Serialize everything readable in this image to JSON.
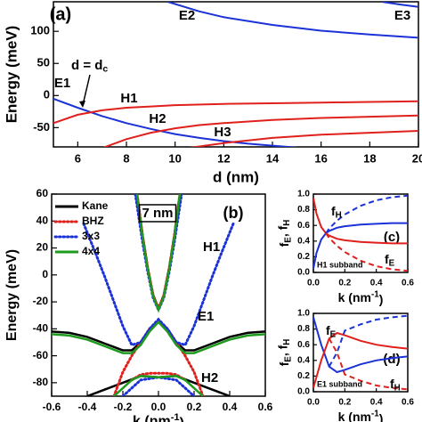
{
  "chart_data": [
    {
      "type": "line",
      "title": "(a)",
      "xlabel": "d (nm)",
      "ylabel": "Energy (meV)",
      "xlim": [
        5,
        20
      ],
      "ylim": [
        -80,
        146
      ],
      "xticks": [
        6,
        8,
        10,
        12,
        14,
        16,
        18,
        20
      ],
      "yticks": [
        -50,
        0,
        50,
        100
      ],
      "annotations": [
        {
          "parts": [
            "d = d",
            "c"
          ],
          "script": "sub",
          "color": "#000000"
        }
      ],
      "series": [
        {
          "name": "E1",
          "color": "#1a32d6",
          "style": "solid",
          "x": [
            5,
            6,
            7,
            8,
            9,
            10,
            11,
            12,
            13,
            14,
            15
          ],
          "values": [
            -5,
            -19,
            -32,
            -43,
            -52,
            -60,
            -66,
            -71,
            -75,
            -78,
            -81
          ]
        },
        {
          "name": "E2",
          "color": "#1a32d6",
          "style": "solid",
          "x": [
            9.7,
            11,
            12,
            14,
            16,
            18,
            20
          ],
          "values": [
            146,
            131,
            122,
            110,
            101,
            95,
            90
          ]
        },
        {
          "name": "E3",
          "color": "#1a32d6",
          "style": "solid",
          "x": [
            18.5,
            19.2,
            20
          ],
          "values": [
            146,
            142,
            138
          ]
        },
        {
          "name": "H1",
          "color": "#e0201c",
          "style": "solid",
          "x": [
            5,
            6,
            7,
            8,
            9,
            10,
            12,
            14,
            16,
            18,
            20
          ],
          "values": [
            -43,
            -30,
            -23,
            -19,
            -17,
            -15,
            -13,
            -12,
            -11,
            -10,
            -9
          ]
        },
        {
          "name": "H2",
          "color": "#e0201c",
          "style": "solid",
          "x": [
            7,
            8,
            9,
            10,
            11,
            12,
            14,
            16,
            18,
            20
          ],
          "values": [
            -82,
            -68,
            -58,
            -51,
            -46,
            -43,
            -38,
            -35,
            -33,
            -31
          ]
        },
        {
          "name": "H3",
          "color": "#e0201c",
          "style": "solid",
          "x": [
            10.5,
            12,
            14,
            16,
            18,
            20
          ],
          "values": [
            -82,
            -74,
            -66,
            -61,
            -58,
            -55
          ]
        }
      ]
    },
    {
      "type": "line",
      "title": "(b)",
      "xlabel": {
        "parts": [
          "k (nm",
          "-1",
          ")"
        ],
        "script": "sup"
      },
      "ylabel": "Energy (meV)",
      "xlim": [
        -0.6,
        0.6
      ],
      "ylim": [
        -90,
        60
      ],
      "xticks": [
        {
          "value": -0.6,
          "label": "-0.6"
        },
        {
          "value": -0.4,
          "label": "-0.4"
        },
        {
          "value": -0.2,
          "label": "-0.2"
        },
        {
          "value": 0,
          "label": "0.0"
        },
        0.2,
        0.4,
        0.6
      ],
      "yticks": [
        -80,
        -60,
        -40,
        -20,
        0,
        20,
        40,
        60
      ],
      "annotations": [
        "7 nm",
        "H1",
        "E1",
        "H2"
      ],
      "series": [
        {
          "name": "Kane",
          "color": "#000000",
          "style": "solid",
          "x": [
            -0.12,
            -0.09,
            -0.06,
            -0.03,
            0,
            0.03,
            0.06,
            0.09,
            0.12,
            null,
            -0.6,
            -0.5,
            -0.4,
            -0.3,
            -0.2,
            -0.15,
            -0.1,
            -0.05,
            0,
            0.05,
            0.1,
            0.15,
            0.2,
            0.3,
            0.4,
            0.5,
            0.6,
            null,
            -0.4,
            -0.3,
            -0.2,
            -0.1,
            0,
            0.1,
            0.2,
            0.3,
            0.4
          ],
          "values": [
            60,
            30,
            5,
            -15,
            -25,
            -15,
            5,
            30,
            60,
            null,
            -42,
            -43,
            -46,
            -51,
            -56,
            -56,
            -50,
            -40,
            -34,
            -40,
            -50,
            -56,
            -56,
            -51,
            -46,
            -43,
            -42,
            null,
            -90,
            -85,
            -80,
            -75,
            -76,
            -75,
            -80,
            -85,
            -90
          ]
        },
        {
          "name": "BHZ",
          "color": "#e0201c",
          "style": "dotted",
          "x": [
            -0.12,
            -0.09,
            -0.06,
            -0.03,
            0,
            0.03,
            0.06,
            0.09,
            0.12,
            null,
            -0.25,
            -0.2,
            -0.15,
            -0.1,
            -0.05,
            0,
            0.05,
            0.1,
            0.15,
            0.2,
            0.25,
            null,
            -0.15,
            -0.1,
            -0.05,
            0,
            0.05,
            0.1,
            0.15
          ],
          "values": [
            60,
            30,
            5,
            -15,
            -25,
            -15,
            5,
            30,
            60,
            null,
            -90,
            -72,
            -60,
            -50,
            -40,
            -34,
            -40,
            -50,
            -60,
            -72,
            -90,
            null,
            -78,
            -74,
            -73,
            -73,
            -73,
            -74,
            -78
          ]
        },
        {
          "name": "3x3",
          "color": "#1a32d6",
          "style": "dotted",
          "x": [
            -0.13,
            -0.09,
            -0.06,
            -0.03,
            0,
            0.03,
            0.06,
            0.09,
            0.13,
            null,
            -0.42,
            -0.35,
            -0.3,
            -0.25,
            -0.2,
            -0.15,
            -0.1,
            -0.05,
            0,
            0.05,
            0.1,
            0.15,
            0.2,
            0.25,
            0.3,
            0.35,
            0.42,
            null,
            -0.2,
            -0.1,
            0,
            0.1,
            0.2
          ],
          "values": [
            60,
            25,
            2,
            -17,
            -26,
            -17,
            2,
            25,
            60,
            null,
            38,
            15,
            -2,
            -20,
            -38,
            -52,
            -50,
            -40,
            -33,
            -40,
            -50,
            -52,
            -38,
            -20,
            -2,
            15,
            38,
            null,
            -90,
            -78,
            -76,
            -78,
            -90
          ]
        },
        {
          "name": "4x4",
          "color": "#1e9a1e",
          "style": "solid",
          "x": [
            -0.12,
            -0.09,
            -0.06,
            -0.03,
            0,
            0.03,
            0.06,
            0.09,
            0.12,
            null,
            -0.6,
            -0.5,
            -0.4,
            -0.3,
            -0.2,
            -0.15,
            -0.1,
            -0.05,
            0,
            0.05,
            0.1,
            0.15,
            0.2,
            0.3,
            0.4,
            0.5,
            0.6,
            null,
            -0.25,
            -0.2,
            -0.15,
            -0.1,
            0,
            0.1,
            0.15,
            0.2,
            0.25
          ],
          "values": [
            60,
            29,
            4,
            -16,
            -26,
            -16,
            4,
            29,
            60,
            null,
            -44,
            -45,
            -48,
            -53,
            -58,
            -58,
            -52,
            -42,
            -35,
            -42,
            -52,
            -58,
            -58,
            -53,
            -48,
            -45,
            -44,
            null,
            -90,
            -84,
            -78,
            -75,
            -76,
            -75,
            -78,
            -84,
            -90
          ]
        }
      ]
    },
    {
      "type": "line",
      "title": "(c)",
      "xlabel": {
        "parts": [
          "k (nm",
          "-1",
          ")"
        ],
        "script": "sup"
      },
      "ylabel": {
        "parts": [
          "f",
          "E",
          ", f",
          "H"
        ],
        "script": "sub"
      },
      "xlim": [
        0,
        0.6
      ],
      "ylim": [
        0,
        1
      ],
      "xticks": [
        {
          "value": 0,
          "label": "0.0"
        },
        0.2,
        0.4,
        0.6
      ],
      "yticks": [
        {
          "value": 0,
          "label": "0.0"
        },
        0.2,
        0.4,
        0.6,
        0.8,
        {
          "value": 1,
          "label": "1.0"
        }
      ],
      "annotations": [
        {
          "parts": [
            "f",
            "H"
          ],
          "script": "sub",
          "color": "#e0201c"
        },
        {
          "parts": [
            "f",
            "E"
          ],
          "script": "sub",
          "color": "#1a32d6"
        },
        "H1 subband"
      ],
      "series": [
        {
          "color": "#1a32d6",
          "style": "solid",
          "x": [
            0,
            0.02,
            0.05,
            0.08,
            0.1,
            0.15,
            0.2,
            0.3,
            0.4,
            0.5,
            0.6
          ],
          "values": [
            0.05,
            0.25,
            0.42,
            0.5,
            0.53,
            0.57,
            0.59,
            0.61,
            0.62,
            0.63,
            0.63
          ]
        },
        {
          "color": "#e0201c",
          "style": "solid",
          "x": [
            0,
            0.02,
            0.05,
            0.08,
            0.1,
            0.15,
            0.2,
            0.3,
            0.4,
            0.5,
            0.6
          ],
          "values": [
            0.95,
            0.75,
            0.58,
            0.5,
            0.47,
            0.43,
            0.41,
            0.39,
            0.38,
            0.37,
            0.37
          ]
        },
        {
          "color": "#1a32d6",
          "style": "dashed",
          "x": [
            0.08,
            0.1,
            0.15,
            0.2,
            0.3,
            0.4,
            0.5,
            0.6
          ],
          "values": [
            0.5,
            0.56,
            0.66,
            0.74,
            0.85,
            0.92,
            0.96,
            0.98
          ]
        },
        {
          "color": "#e0201c",
          "style": "dashed",
          "x": [
            0.08,
            0.1,
            0.15,
            0.2,
            0.3,
            0.4,
            0.5,
            0.6
          ],
          "values": [
            0.5,
            0.44,
            0.34,
            0.26,
            0.15,
            0.08,
            0.04,
            0.02
          ]
        }
      ]
    },
    {
      "type": "line",
      "title": "(d)",
      "xlabel": {
        "parts": [
          "k (nm",
          "-1",
          ")"
        ],
        "script": "sup"
      },
      "ylabel": {
        "parts": [
          "f",
          "E",
          ", f",
          "H"
        ],
        "script": "sub"
      },
      "xlim": [
        0,
        0.6
      ],
      "ylim": [
        0,
        1
      ],
      "xticks": [
        {
          "value": 0,
          "label": "0.0"
        },
        0.2,
        0.4,
        0.6
      ],
      "yticks": [
        {
          "value": 0,
          "label": "0.0"
        },
        0.2,
        0.4,
        0.6,
        0.8,
        {
          "value": 1,
          "label": "1.0"
        }
      ],
      "annotations": [
        {
          "parts": [
            "f",
            "E"
          ],
          "script": "sub",
          "color": "#1a32d6"
        },
        {
          "parts": [
            "f",
            "H"
          ],
          "script": "sub",
          "color": "#e0201c"
        },
        "E1 subband"
      ],
      "series": [
        {
          "color": "#1a32d6",
          "style": "solid",
          "x": [
            0,
            0.05,
            0.1,
            0.15,
            0.2,
            0.3,
            0.4,
            0.5,
            0.6
          ],
          "values": [
            0.95,
            0.6,
            0.32,
            0.25,
            0.28,
            0.35,
            0.4,
            0.43,
            0.45
          ]
        },
        {
          "color": "#e0201c",
          "style": "solid",
          "x": [
            0,
            0.05,
            0.1,
            0.15,
            0.2,
            0.3,
            0.4,
            0.5,
            0.6
          ],
          "values": [
            0.05,
            0.4,
            0.68,
            0.75,
            0.72,
            0.65,
            0.6,
            0.57,
            0.55
          ]
        },
        {
          "color": "#1a32d6",
          "style": "dashed",
          "x": [
            0.1,
            0.15,
            0.2,
            0.3,
            0.4,
            0.5,
            0.6
          ],
          "values": [
            0.32,
            0.5,
            0.78,
            0.86,
            0.92,
            0.95,
            0.97
          ]
        },
        {
          "color": "#e0201c",
          "style": "dashed",
          "x": [
            0.1,
            0.15,
            0.2,
            0.3,
            0.4,
            0.5,
            0.6
          ],
          "values": [
            0.68,
            0.5,
            0.22,
            0.14,
            0.08,
            0.05,
            0.03
          ]
        }
      ]
    }
  ]
}
